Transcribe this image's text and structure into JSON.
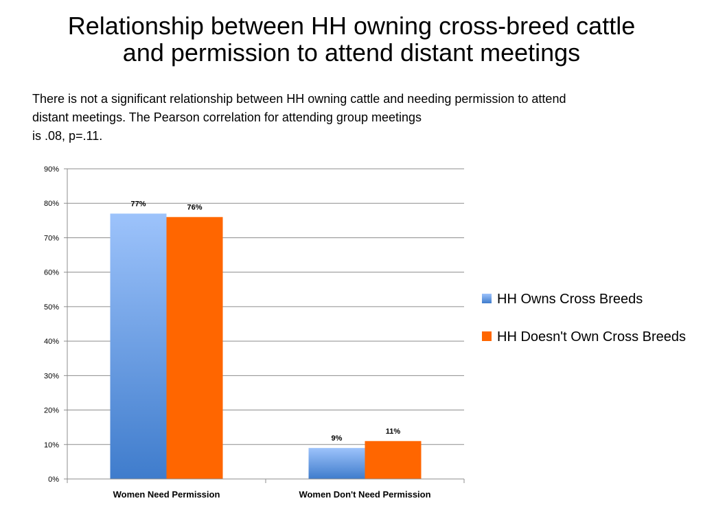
{
  "slide": {
    "title_lines": [
      "Relationship between HH owning cross-breed cattle",
      "and permission to attend distant meetings"
    ],
    "text_lines": [
      "There is not a significant relationship between HH owning cattle and needing permission to attend",
      "distant meetings.  The Pearson correlation for attending group meetings",
      "is .08, p=.11."
    ]
  },
  "chart_data": {
    "type": "bar",
    "categories": [
      "Women Need Permission",
      "Women Don't Need Permission"
    ],
    "series": [
      {
        "name": "HH Owns Cross Breeds",
        "values": [
          77,
          9
        ],
        "labels": [
          "77%",
          "9%"
        ],
        "color_top": "#9dc3fb",
        "color_bottom": "#3f7ccc"
      },
      {
        "name": "HH Doesn't Own Cross Breeds",
        "values": [
          76,
          11
        ],
        "labels": [
          "76%",
          "11%"
        ],
        "color_top": "#ff6600",
        "color_bottom": "#ff6600"
      }
    ],
    "ylim": [
      0,
      90
    ],
    "yticks": [
      0,
      10,
      20,
      30,
      40,
      50,
      60,
      70,
      80,
      90
    ],
    "ytick_labels": [
      "0%",
      "10%",
      "20%",
      "30%",
      "40%",
      "50%",
      "60%",
      "70%",
      "80%",
      "90%"
    ],
    "grid": true,
    "legend_position": "right"
  }
}
